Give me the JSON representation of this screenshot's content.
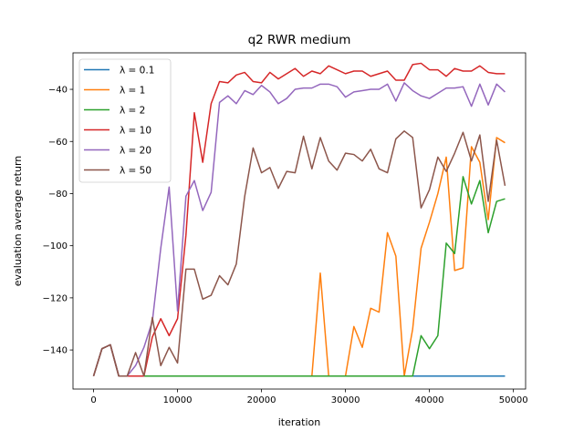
{
  "chart_data": {
    "type": "line",
    "title": "q2 RWR medium",
    "xlabel": "iteration",
    "ylabel": "evaluation average return",
    "xlim": [
      -2450,
      51450
    ],
    "ylim": [
      -155,
      -26
    ],
    "xticks": [
      0,
      10000,
      20000,
      30000,
      40000,
      50000
    ],
    "yticks": [
      -140,
      -120,
      -100,
      -80,
      -60,
      -40
    ],
    "xtick_labels": [
      "0",
      "10000",
      "20000",
      "30000",
      "40000",
      "50000"
    ],
    "ytick_labels": [
      "−140",
      "−120",
      "−100",
      "−80",
      "−60",
      "−40"
    ],
    "grid": false,
    "legend_position": "top-left",
    "x": [
      0,
      1000,
      2000,
      3000,
      4000,
      5000,
      6000,
      7000,
      8000,
      9000,
      10000,
      11000,
      12000,
      13000,
      14000,
      15000,
      16000,
      17000,
      18000,
      19000,
      20000,
      21000,
      22000,
      23000,
      24000,
      25000,
      26000,
      27000,
      28000,
      29000,
      30000,
      31000,
      32000,
      33000,
      34000,
      35000,
      36000,
      37000,
      38000,
      39000,
      40000,
      41000,
      42000,
      43000,
      44000,
      45000,
      46000,
      47000,
      48000,
      49000
    ],
    "series": [
      {
        "name": "λ = 0.1",
        "color": "#1f77b4",
        "values": [
          -150,
          -139.5,
          -138,
          -150,
          -150,
          -150,
          -150,
          -150,
          -150,
          -150,
          -150,
          -150,
          -150,
          -150,
          -150,
          -150,
          -150,
          -150,
          -150,
          -150,
          -150,
          -150,
          -150,
          -150,
          -150,
          -150,
          -150,
          -150,
          -150,
          -150,
          -150,
          -150,
          -150,
          -150,
          -150,
          -150,
          -150,
          -150,
          -150,
          -150,
          -150,
          -150,
          -150,
          -150,
          -150,
          -150,
          -150,
          -150,
          -150,
          -150
        ]
      },
      {
        "name": "λ = 1",
        "color": "#ff7f0e",
        "values": [
          -150,
          -139.5,
          -138,
          -150,
          -150,
          -150,
          -150,
          -150,
          -150,
          -150,
          -150,
          -150,
          -150,
          -150,
          -150,
          -150,
          -150,
          -150,
          -150,
          -150,
          -150,
          -150,
          -150,
          -150,
          -150,
          -150,
          -150,
          -110.5,
          -150,
          -150,
          -150,
          -131,
          -139,
          -124,
          -125.5,
          -95,
          -104,
          -150,
          -132,
          -101,
          -91,
          -80,
          -66,
          -109.5,
          -108.5,
          -62,
          -68,
          -90,
          -58.5,
          -60.5
        ]
      },
      {
        "name": "λ = 2",
        "color": "#2ca02c",
        "values": [
          -150,
          -139.5,
          -138,
          -150,
          -150,
          -150,
          -150,
          -150,
          -150,
          -150,
          -150,
          -150,
          -150,
          -150,
          -150,
          -150,
          -150,
          -150,
          -150,
          -150,
          -150,
          -150,
          -150,
          -150,
          -150,
          -150,
          -150,
          -150,
          -150,
          -150,
          -150,
          -150,
          -150,
          -150,
          -150,
          -150,
          -150,
          -150,
          -150,
          -134.5,
          -139.5,
          -134.5,
          -99,
          -103,
          -73.5,
          -84,
          -75,
          -95,
          -83,
          -82
        ]
      },
      {
        "name": "λ = 10",
        "color": "#d62728",
        "values": [
          -150,
          -139.5,
          -138,
          -150,
          -150,
          -150,
          -150,
          -135,
          -128,
          -134.5,
          -128,
          -96,
          -49,
          -68,
          -45.5,
          -37,
          -37.5,
          -34.5,
          -33.5,
          -37,
          -37.5,
          -33.5,
          -36,
          -34,
          -32,
          -35,
          -33,
          -34,
          -31,
          -32.5,
          -34,
          -33,
          -33,
          -35,
          -34,
          -33,
          -36.5,
          -36.5,
          -30.5,
          -30,
          -32.5,
          -32.5,
          -35,
          -32,
          -33,
          -33,
          -31,
          -33.5,
          -34,
          -34
        ]
      },
      {
        "name": "λ = 20",
        "color": "#9467bd",
        "values": [
          -150,
          -139.5,
          -138,
          -150,
          -150,
          -146,
          -139,
          -129,
          -101,
          -77.5,
          -125,
          -81,
          -75,
          -86.5,
          -79.5,
          -45,
          -42.5,
          -45.5,
          -40.5,
          -42,
          -38.5,
          -41,
          -45.5,
          -43.5,
          -40,
          -39.5,
          -39.5,
          -38,
          -38,
          -39,
          -43,
          -41,
          -40.5,
          -40,
          -40,
          -38,
          -44.5,
          -37.5,
          -40.5,
          -42.5,
          -43.5,
          -41.5,
          -39.5,
          -39.5,
          -39,
          -46.5,
          -38,
          -46,
          -38,
          -41
        ]
      },
      {
        "name": "λ = 50",
        "color": "#8c564b",
        "values": [
          -150,
          -139.5,
          -138,
          -150,
          -150,
          -141,
          -150,
          -127.5,
          -146,
          -139,
          -145,
          -109,
          -109,
          -120.5,
          -119,
          -111.5,
          -115,
          -107,
          -81,
          -62.5,
          -72,
          -70,
          -78,
          -71.5,
          -72,
          -58,
          -70.5,
          -58.5,
          -67.5,
          -71,
          -64.5,
          -65,
          -67.5,
          -63,
          -70.5,
          -72,
          -59,
          -56,
          -58.5,
          -85.5,
          -78.5,
          -66,
          -71.5,
          -64.5,
          -56.5,
          -67.5,
          -57.5,
          -83,
          -59.5,
          -77
        ]
      }
    ]
  }
}
